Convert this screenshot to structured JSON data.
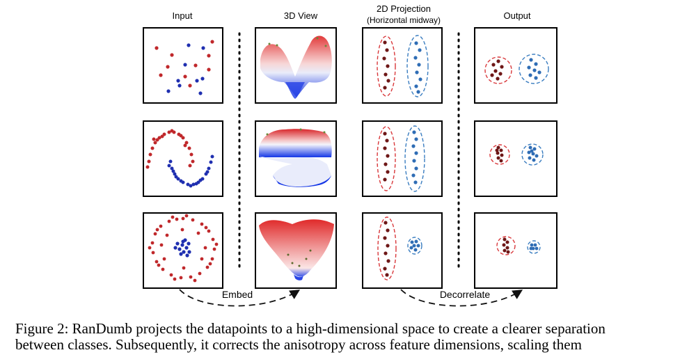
{
  "columns": {
    "input": "Input",
    "view3d": "3D View",
    "projection_line1": "2D Projection",
    "projection_line2": "(Horizontal midway)",
    "output": "Output"
  },
  "arrows": {
    "embed": "Embed",
    "decorrelate": "Decorrelate"
  },
  "caption": {
    "line1": "Figure 2: RanDumb projects the datapoints to a high-dimensional space to create a clearer separation",
    "line2": "between classes. Subsequently, it corrects the anisotropy across feature dimensions, scaling them"
  },
  "colors": {
    "red_point": "#c0282b",
    "blue_point": "#1f2fb0",
    "dark_red_point": "#6e1717",
    "blue_output_point": "#2f6db5",
    "red_ellipse": "#d9383b",
    "blue_ellipse": "#3a7dc0"
  }
}
